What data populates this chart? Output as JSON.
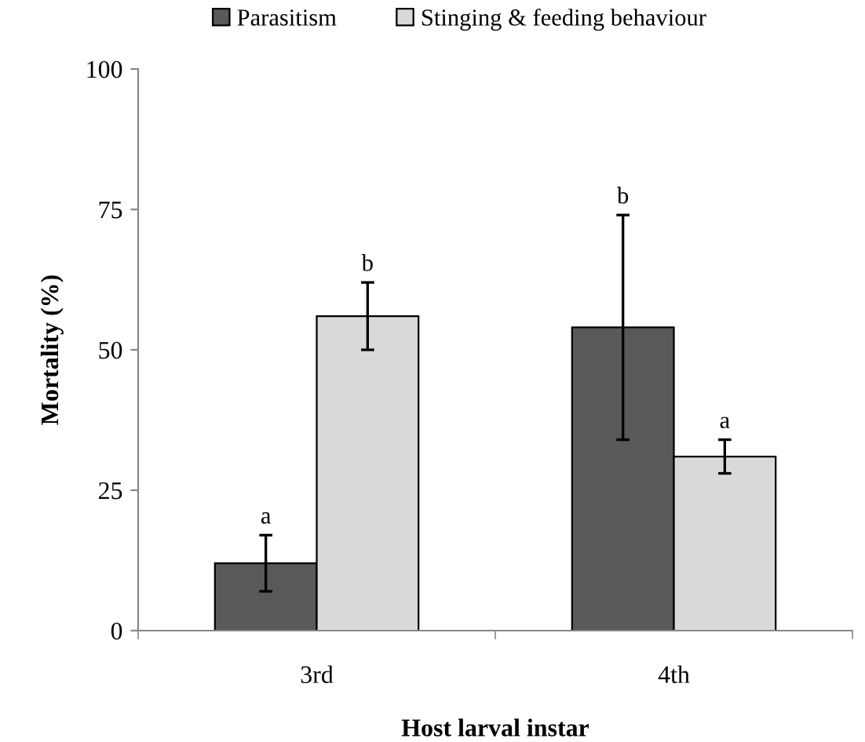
{
  "chart_data": {
    "type": "bar",
    "xlabel": "Host larval instar",
    "ylabel": "Mortality (%)",
    "categories": [
      "3rd",
      "4th"
    ],
    "series": [
      {
        "name": "Parasitism",
        "color": "#595959",
        "values": [
          12,
          54
        ],
        "errors": [
          [
            7,
            17
          ],
          [
            34,
            74
          ]
        ]
      },
      {
        "name": "Stinging & feeding behaviour",
        "color": "#d9d9d9",
        "values": [
          56,
          31
        ],
        "errors": [
          [
            50,
            62
          ],
          [
            28,
            34
          ]
        ]
      }
    ],
    "annotations": [
      "a",
      "b",
      "b",
      "a"
    ],
    "ylim": [
      0,
      100
    ],
    "yticks": [
      0,
      25,
      50,
      75,
      100
    ],
    "grid": false,
    "legend": "top"
  }
}
